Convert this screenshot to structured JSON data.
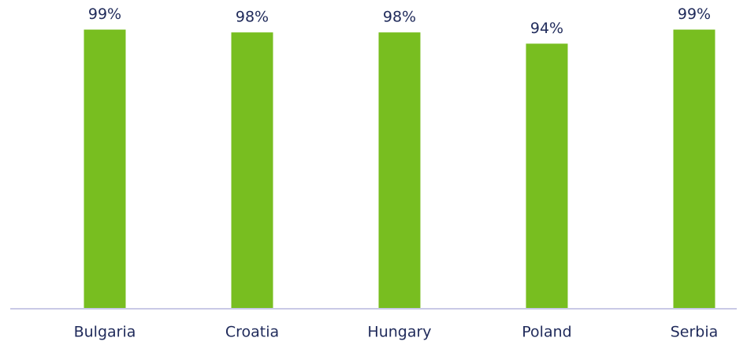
{
  "chart_data": {
    "type": "bar",
    "categories": [
      "Bulgaria",
      "Croatia",
      "Hungary",
      "Poland",
      "Serbia"
    ],
    "values": [
      99,
      98,
      98,
      94,
      99
    ],
    "value_labels": [
      "99%",
      "98%",
      "98%",
      "94%",
      "99%"
    ],
    "color": "#78be20",
    "ylim": [
      0,
      100
    ]
  }
}
